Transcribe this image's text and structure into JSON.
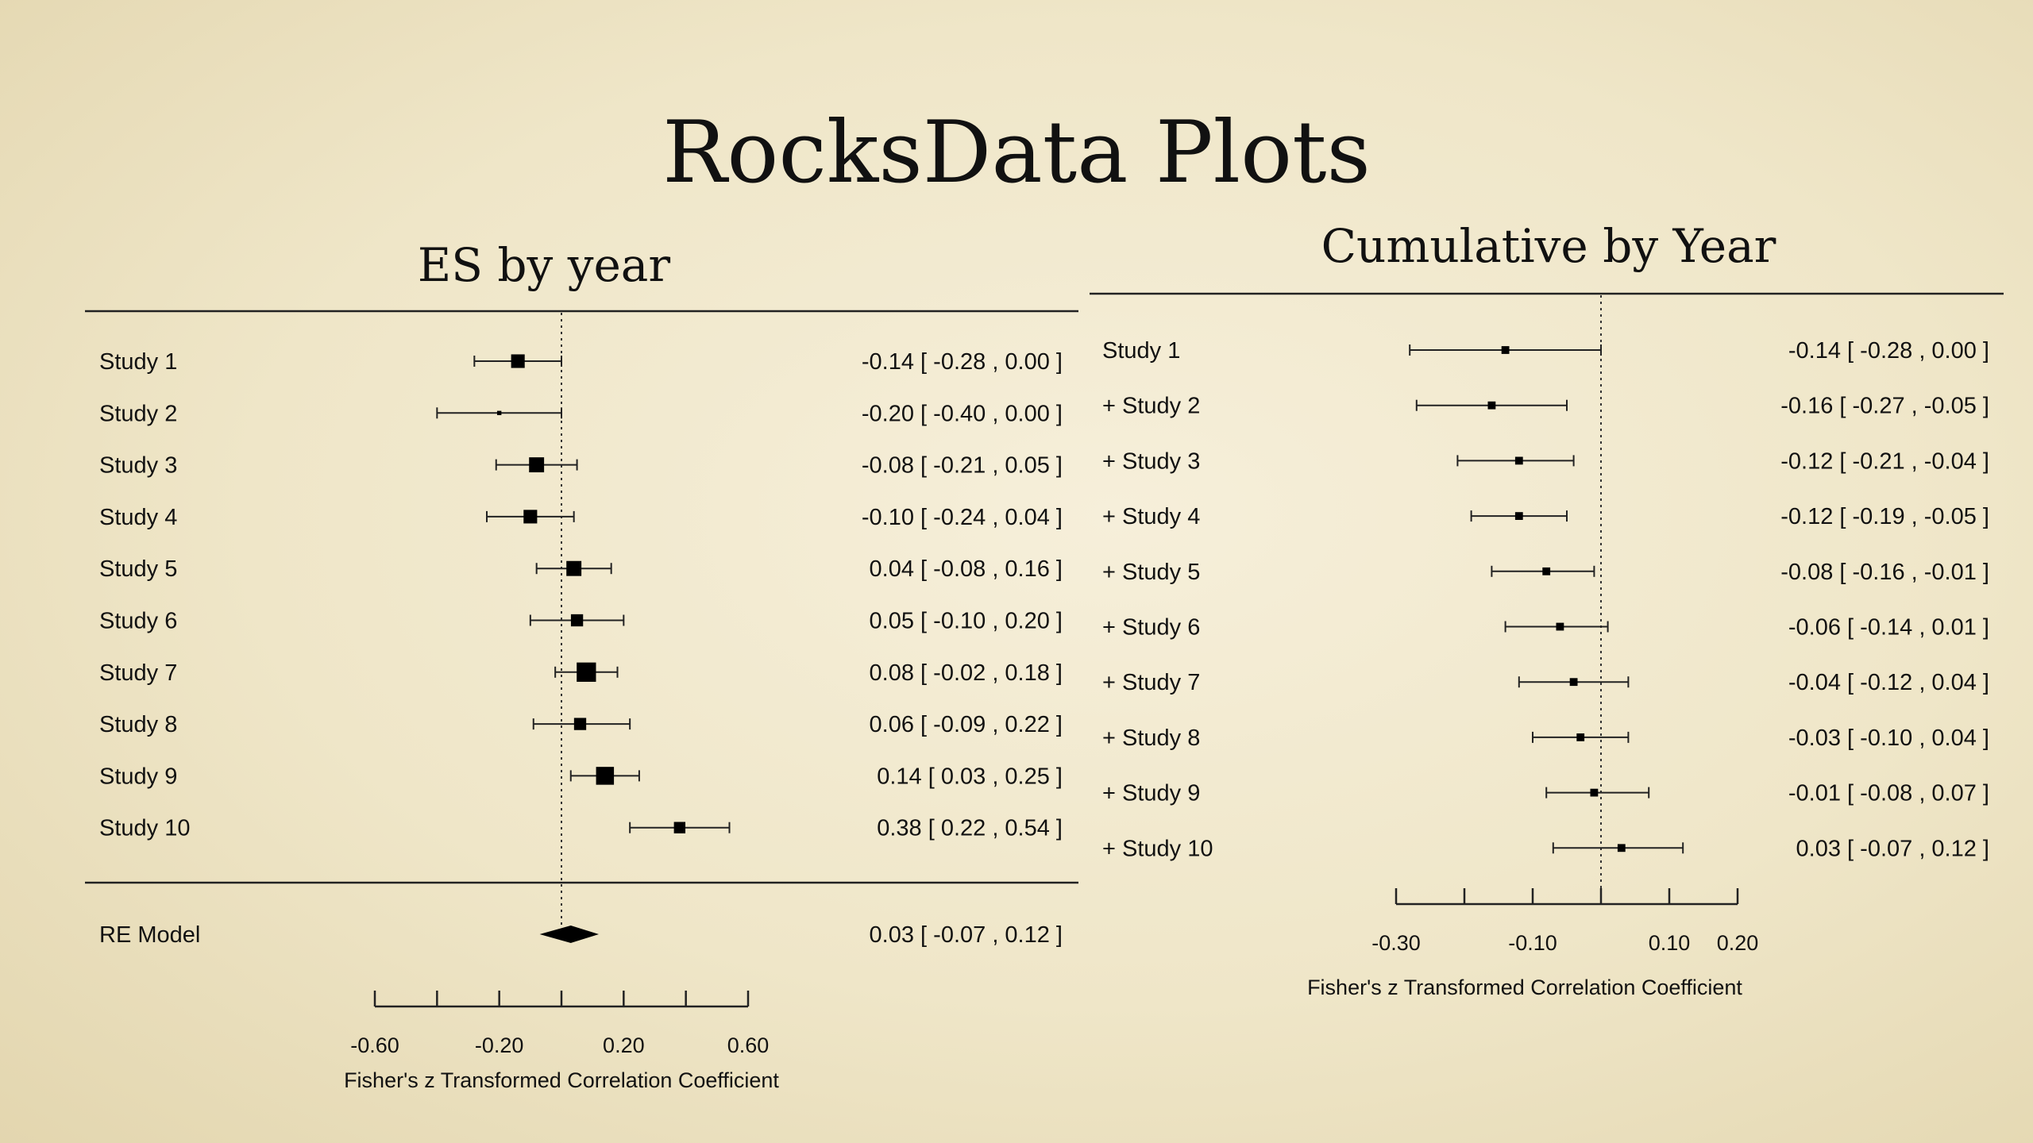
{
  "slide_title": "RocksData Plots",
  "chart_data": [
    {
      "type": "forest",
      "title": "ES by year",
      "xlabel": "Fisher's z Transformed Correlation Coefficient",
      "xlim": [
        -0.6,
        0.6
      ],
      "ticks": [
        -0.6,
        -0.4,
        -0.2,
        0.0,
        0.2,
        0.4,
        0.6
      ],
      "tick_labels": [
        "-0.60",
        "",
        "-0.20",
        "",
        "0.20",
        "",
        "0.60"
      ],
      "reference_line": 0.0,
      "rows": [
        {
          "label": "Study  1",
          "est": -0.14,
          "lo": -0.28,
          "hi": 0.0,
          "weight": 0.95,
          "text": "-0.14 [ -0.28 , 0.00 ]"
        },
        {
          "label": "Study  2",
          "est": -0.2,
          "lo": -0.4,
          "hi": 0.0,
          "weight": 0.3,
          "text": "-0.20 [ -0.40 , 0.00 ]"
        },
        {
          "label": "Study  3",
          "est": -0.08,
          "lo": -0.21,
          "hi": 0.05,
          "weight": 1.05,
          "text": "-0.08 [ -0.21 , 0.05 ]"
        },
        {
          "label": "Study  4",
          "est": -0.1,
          "lo": -0.24,
          "hi": 0.04,
          "weight": 0.95,
          "text": "-0.10 [ -0.24 , 0.04 ]"
        },
        {
          "label": "Study  5",
          "est": 0.04,
          "lo": -0.08,
          "hi": 0.16,
          "weight": 1.05,
          "text": "0.04 [ -0.08 , 0.16 ]"
        },
        {
          "label": "Study  6",
          "est": 0.05,
          "lo": -0.1,
          "hi": 0.2,
          "weight": 0.85,
          "text": "0.05 [ -0.10 , 0.20 ]"
        },
        {
          "label": "Study  7",
          "est": 0.08,
          "lo": -0.02,
          "hi": 0.18,
          "weight": 1.35,
          "text": "0.08 [ -0.02 , 0.18 ]"
        },
        {
          "label": "Study  8",
          "est": 0.06,
          "lo": -0.09,
          "hi": 0.22,
          "weight": 0.85,
          "text": "0.06 [ -0.09 , 0.22 ]"
        },
        {
          "label": "Study  9",
          "est": 0.14,
          "lo": 0.03,
          "hi": 0.25,
          "weight": 1.25,
          "text": "0.14 [  0.03 , 0.25 ]"
        },
        {
          "label": "Study  10",
          "est": 0.38,
          "lo": 0.22,
          "hi": 0.54,
          "weight": 0.8,
          "text": "0.38 [  0.22 , 0.54 ]"
        }
      ],
      "summary": {
        "label": "RE Model",
        "est": 0.03,
        "lo": -0.07,
        "hi": 0.12,
        "text": "0.03 [ -0.07 , 0.12 ]"
      }
    },
    {
      "type": "forest",
      "title": "Cumulative by Year",
      "xlabel": "Fisher's z Transformed Correlation Coefficient",
      "xlim": [
        -0.3,
        0.2
      ],
      "ticks": [
        -0.3,
        -0.2,
        -0.1,
        0.0,
        0.1,
        0.2
      ],
      "tick_labels": [
        "-0.30",
        "",
        "-0.10",
        "",
        "0.10",
        "0.20"
      ],
      "reference_line": 0.0,
      "rows": [
        {
          "label": "Study  1",
          "est": -0.14,
          "lo": -0.28,
          "hi": 0.0,
          "text": "-0.14 [ -0.28 ,  0.00 ]"
        },
        {
          "label": "+ Study  2",
          "est": -0.16,
          "lo": -0.27,
          "hi": -0.05,
          "text": "-0.16 [ -0.27 , -0.05 ]"
        },
        {
          "label": "+ Study  3",
          "est": -0.12,
          "lo": -0.21,
          "hi": -0.04,
          "text": "-0.12 [ -0.21 , -0.04 ]"
        },
        {
          "label": "+ Study  4",
          "est": -0.12,
          "lo": -0.19,
          "hi": -0.05,
          "text": "-0.12 [ -0.19 , -0.05 ]"
        },
        {
          "label": "+ Study  5",
          "est": -0.08,
          "lo": -0.16,
          "hi": -0.01,
          "text": "-0.08 [ -0.16 , -0.01 ]"
        },
        {
          "label": "+ Study  6",
          "est": -0.06,
          "lo": -0.14,
          "hi": 0.01,
          "text": "-0.06 [ -0.14 ,  0.01 ]"
        },
        {
          "label": "+ Study  7",
          "est": -0.04,
          "lo": -0.12,
          "hi": 0.04,
          "text": "-0.04 [ -0.12 ,  0.04 ]"
        },
        {
          "label": "+ Study  8",
          "est": -0.03,
          "lo": -0.1,
          "hi": 0.04,
          "text": "-0.03 [ -0.10 ,  0.04 ]"
        },
        {
          "label": "+ Study  9",
          "est": -0.01,
          "lo": -0.08,
          "hi": 0.07,
          "text": "-0.01 [ -0.08 ,  0.07 ]"
        },
        {
          "label": "+ Study  10",
          "est": 0.03,
          "lo": -0.07,
          "hi": 0.12,
          "text": "0.03 [ -0.07 ,  0.12 ]"
        }
      ]
    }
  ]
}
